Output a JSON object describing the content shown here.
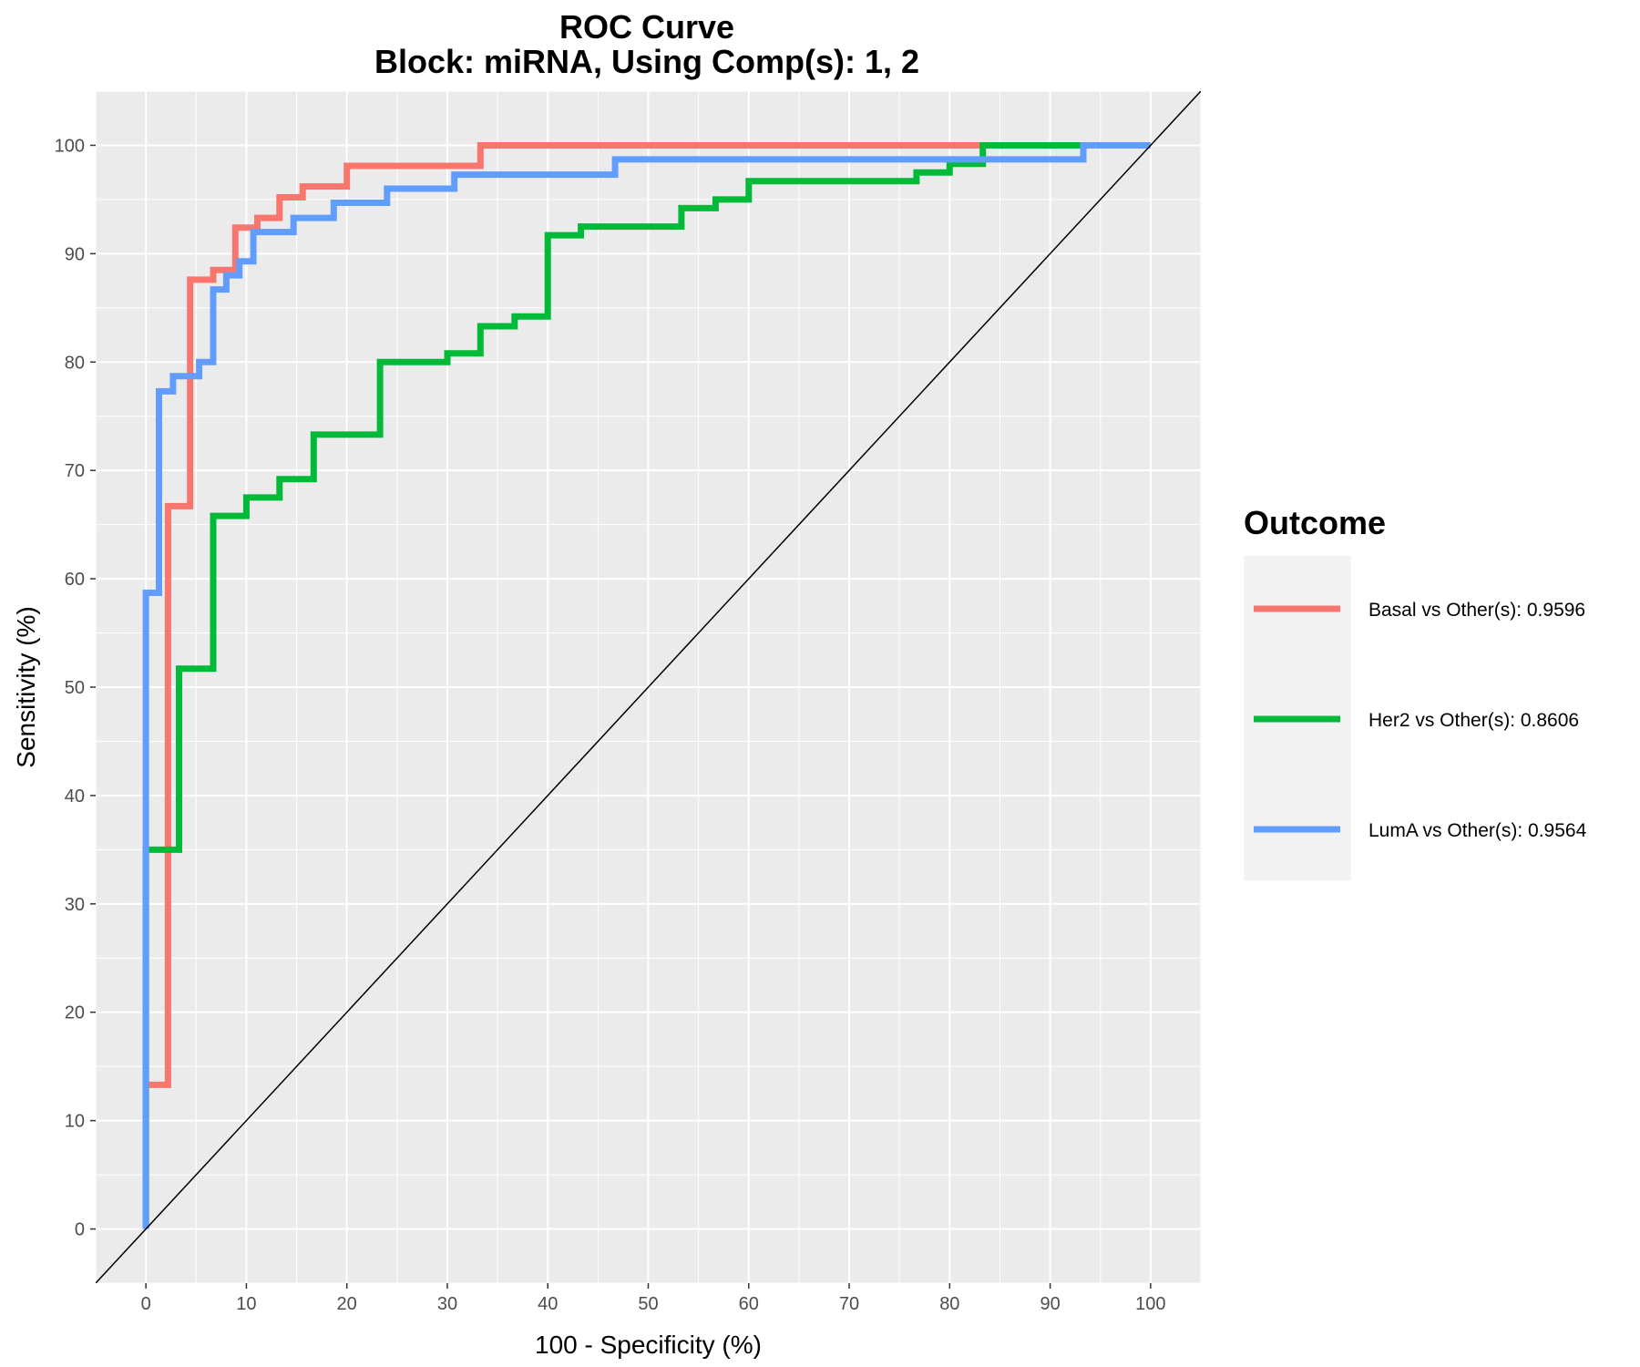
{
  "chart_data": {
    "type": "line",
    "title": "ROC Curve",
    "subtitle": "Block: miRNA, Using Comp(s): 1, 2",
    "xlabel": "100 - Specificity (%)",
    "ylabel": "Sensitivity (%)",
    "xlim": [
      -5,
      105
    ],
    "ylim": [
      -5,
      105
    ],
    "xticks": [
      0,
      10,
      20,
      30,
      40,
      50,
      60,
      70,
      80,
      90,
      100
    ],
    "yticks": [
      0,
      10,
      20,
      30,
      40,
      50,
      60,
      70,
      80,
      90,
      100
    ],
    "grid": true,
    "reference_line": {
      "from": [
        0,
        0
      ],
      "to": [
        100,
        100
      ],
      "color": "#000000"
    },
    "legend": {
      "title": "Outcome",
      "placement": "right"
    },
    "series": [
      {
        "name": "Basal vs Other(s): 0.9596",
        "color": "#F8766D",
        "step": "hv",
        "x": [
          0,
          0,
          2.2,
          2.2,
          4.4,
          4.4,
          6.7,
          6.7,
          8.9,
          8.9,
          11.1,
          11.1,
          13.3,
          13.3,
          15.6,
          15.6,
          20,
          20,
          33.3,
          33.3,
          83.3
        ],
        "y": [
          0,
          13.3,
          13.3,
          66.7,
          66.7,
          87.6,
          87.6,
          88.5,
          88.5,
          92.4,
          92.4,
          93.3,
          93.3,
          95.2,
          95.2,
          96.2,
          96.2,
          98.1,
          98.1,
          100,
          100
        ]
      },
      {
        "name": "Her2 vs Other(s): 0.8606",
        "color": "#00BA38",
        "step": "hv",
        "x": [
          0,
          0,
          3.3,
          3.3,
          6.7,
          6.7,
          10,
          10,
          13.3,
          13.3,
          16.7,
          16.7,
          23.3,
          23.3,
          30,
          30,
          33.3,
          33.3,
          36.7,
          36.7,
          40,
          40,
          43.3,
          43.3,
          53.3,
          53.3,
          56.7,
          56.7,
          60,
          60,
          76.7,
          76.7,
          80,
          80,
          83.3,
          83.3,
          93.3
        ],
        "y": [
          0,
          35,
          35,
          51.7,
          51.7,
          65.8,
          65.8,
          67.5,
          67.5,
          69.2,
          69.2,
          73.3,
          73.3,
          80,
          80,
          80.8,
          80.8,
          83.3,
          83.3,
          84.2,
          84.2,
          91.7,
          91.7,
          92.5,
          92.5,
          94.2,
          94.2,
          95,
          95,
          96.7,
          96.7,
          97.5,
          97.5,
          98.3,
          98.3,
          100,
          100
        ]
      },
      {
        "name": "LumA vs Other(s): 0.9564",
        "color": "#619CFF",
        "step": "hv",
        "x": [
          0,
          0,
          1.3,
          1.3,
          2.7,
          2.7,
          5.3,
          5.3,
          6.7,
          6.7,
          8,
          8,
          9.3,
          9.3,
          10.7,
          10.7,
          14.7,
          14.7,
          18.7,
          18.7,
          24,
          24,
          30.7,
          30.7,
          46.7,
          46.7,
          93.3,
          93.3,
          100
        ],
        "y": [
          0,
          58.7,
          58.7,
          77.3,
          77.3,
          78.7,
          78.7,
          80,
          80,
          86.7,
          86.7,
          88,
          88,
          89.3,
          89.3,
          92,
          92,
          93.3,
          93.3,
          94.7,
          94.7,
          96,
          96,
          97.3,
          97.3,
          98.7,
          98.7,
          100,
          100
        ]
      }
    ]
  }
}
